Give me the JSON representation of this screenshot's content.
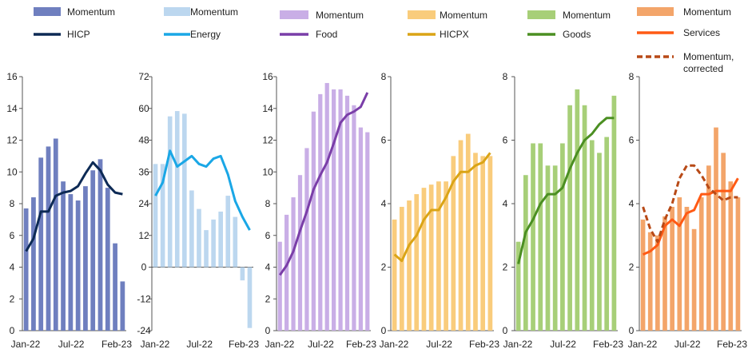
{
  "chart_data": [
    {
      "type": "bar",
      "categories": [
        "Jan-22",
        "Feb-22",
        "Mar-22",
        "Apr-22",
        "May-22",
        "Jun-22",
        "Jul-22",
        "Aug-22",
        "Sep-22",
        "Oct-22",
        "Nov-22",
        "Dec-22",
        "Jan-23",
        "Feb-23"
      ],
      "x_tick_labels": [
        "Jan-22",
        "Jul-22",
        "Feb-23"
      ],
      "ylim": [
        0,
        16
      ],
      "y_ticks": [
        "0",
        "2",
        "4",
        "6",
        "8",
        "10",
        "12",
        "14",
        "16"
      ],
      "grid": false,
      "legend_position": "top",
      "series": [
        {
          "name": "Momentum",
          "kind": "bar",
          "color": "#6f7fbf",
          "values": [
            7.7,
            8.4,
            10.9,
            11.6,
            12.1,
            9.4,
            8.6,
            8.2,
            9.1,
            10.1,
            10.8,
            9.0,
            5.5,
            3.1
          ]
        },
        {
          "name": "HICP",
          "kind": "line",
          "color": "#0d2a55",
          "values": [
            5.0,
            5.8,
            7.5,
            7.5,
            8.5,
            8.7,
            8.8,
            9.1,
            9.9,
            10.6,
            10.1,
            9.2,
            8.7,
            8.6
          ]
        }
      ]
    },
    {
      "type": "bar",
      "categories": [
        "Jan-22",
        "Feb-22",
        "Mar-22",
        "Apr-22",
        "May-22",
        "Jun-22",
        "Jul-22",
        "Aug-22",
        "Sep-22",
        "Oct-22",
        "Nov-22",
        "Dec-22",
        "Jan-23",
        "Feb-23"
      ],
      "x_tick_labels": [
        "Jan-22",
        "Jul-22",
        "Feb-23"
      ],
      "ylim": [
        -24,
        72
      ],
      "y_ticks": [
        "-24",
        "-12",
        "0",
        "12",
        "24",
        "36",
        "48",
        "60",
        "72"
      ],
      "grid": false,
      "legend_position": "top",
      "series": [
        {
          "name": "Momentum",
          "kind": "bar",
          "color": "#bcd7ef",
          "values": [
            39,
            39,
            57,
            59,
            58,
            29,
            22,
            14,
            18,
            21,
            27,
            19,
            -5,
            -23
          ]
        },
        {
          "name": "Energy",
          "kind": "line",
          "color": "#1aa7e6",
          "values": [
            27,
            32,
            44,
            38,
            40,
            42,
            39,
            38,
            41,
            42,
            35,
            25,
            19,
            14
          ]
        }
      ]
    },
    {
      "type": "bar",
      "categories": [
        "Jan-22",
        "Feb-22",
        "Mar-22",
        "Apr-22",
        "May-22",
        "Jun-22",
        "Jul-22",
        "Aug-22",
        "Sep-22",
        "Oct-22",
        "Nov-22",
        "Dec-22",
        "Jan-23",
        "Feb-23"
      ],
      "x_tick_labels": [
        "Jan-22",
        "Jul-22",
        "Feb-23"
      ],
      "ylim": [
        0,
        16
      ],
      "y_ticks": [
        "0",
        "2",
        "4",
        "6",
        "8",
        "10",
        "12",
        "14",
        "16"
      ],
      "grid": false,
      "legend_position": "top",
      "series": [
        {
          "name": "Momentum",
          "kind": "bar",
          "color": "#c9aee6",
          "values": [
            5.6,
            7.3,
            8.4,
            9.8,
            11.5,
            13.8,
            14.9,
            15.6,
            15.2,
            15.2,
            14.8,
            14.2,
            12.8,
            12.5
          ]
        },
        {
          "name": "Food",
          "kind": "line",
          "color": "#7a3ea8",
          "values": [
            3.5,
            4.1,
            5.0,
            6.3,
            7.5,
            8.9,
            9.8,
            10.6,
            11.8,
            13.1,
            13.6,
            13.8,
            14.1,
            15.0
          ]
        }
      ]
    },
    {
      "type": "bar",
      "categories": [
        "Jan-22",
        "Feb-22",
        "Mar-22",
        "Apr-22",
        "May-22",
        "Jun-22",
        "Jul-22",
        "Aug-22",
        "Sep-22",
        "Oct-22",
        "Nov-22",
        "Dec-22",
        "Jan-23",
        "Feb-23"
      ],
      "x_tick_labels": [
        "Jan-22",
        "Jul-22",
        "Feb-23"
      ],
      "ylim": [
        0,
        8
      ],
      "y_ticks": [
        "0",
        "2",
        "4",
        "6",
        "8"
      ],
      "grid": false,
      "legend_position": "top",
      "series": [
        {
          "name": "Momentum",
          "kind": "bar",
          "color": "#f9cc7c",
          "values": [
            3.5,
            3.9,
            4.1,
            4.3,
            4.5,
            4.6,
            4.7,
            4.7,
            5.5,
            6.0,
            6.2,
            5.6,
            5.5,
            5.5
          ]
        },
        {
          "name": "HICPX",
          "kind": "line",
          "color": "#daa416",
          "values": [
            2.4,
            2.2,
            2.7,
            3.0,
            3.5,
            3.8,
            3.8,
            4.2,
            4.7,
            5.0,
            5.0,
            5.2,
            5.3,
            5.6
          ]
        }
      ]
    },
    {
      "type": "bar",
      "categories": [
        "Jan-22",
        "Feb-22",
        "Mar-22",
        "Apr-22",
        "May-22",
        "Jun-22",
        "Jul-22",
        "Aug-22",
        "Sep-22",
        "Oct-22",
        "Nov-22",
        "Dec-22",
        "Jan-23",
        "Feb-23"
      ],
      "x_tick_labels": [
        "Jan-22",
        "Jul-22",
        "Feb-23"
      ],
      "ylim": [
        0,
        8
      ],
      "y_ticks": [
        "0",
        "2",
        "4",
        "6",
        "8"
      ],
      "grid": false,
      "legend_position": "top",
      "series": [
        {
          "name": "Momentum",
          "kind": "bar",
          "color": "#a7cf78",
          "values": [
            2.8,
            4.9,
            5.9,
            5.9,
            5.2,
            5.2,
            5.9,
            7.1,
            7.6,
            7.1,
            6.0,
            5.6,
            6.1,
            7.4
          ]
        },
        {
          "name": "Goods",
          "kind": "line",
          "color": "#4b8f22",
          "values": [
            2.1,
            3.1,
            3.5,
            4.0,
            4.3,
            4.3,
            4.5,
            5.1,
            5.6,
            6.0,
            6.2,
            6.5,
            6.7,
            6.7
          ]
        }
      ]
    },
    {
      "type": "bar",
      "categories": [
        "Jan-22",
        "Feb-22",
        "Mar-22",
        "Apr-22",
        "May-22",
        "Jun-22",
        "Jul-22",
        "Aug-22",
        "Sep-22",
        "Oct-22",
        "Nov-22",
        "Dec-22",
        "Jan-23",
        "Feb-23"
      ],
      "x_tick_labels": [
        "Jan-22",
        "Jul-22",
        "Feb-23"
      ],
      "ylim": [
        0,
        8
      ],
      "y_ticks": [
        "0",
        "2",
        "4",
        "6",
        "8"
      ],
      "grid": false,
      "legend_position": "top",
      "series": [
        {
          "name": "Momentum",
          "kind": "bar",
          "color": "#f3a56a",
          "values": [
            3.5,
            3.1,
            3.0,
            3.6,
            3.9,
            4.2,
            3.9,
            3.2,
            4.2,
            5.2,
            6.4,
            5.6,
            4.7,
            4.2
          ]
        },
        {
          "name": "Services",
          "kind": "line",
          "color": "#ff5a14",
          "values": [
            2.4,
            2.5,
            2.7,
            3.3,
            3.5,
            3.3,
            3.7,
            3.8,
            4.3,
            4.3,
            4.4,
            4.4,
            4.4,
            4.8
          ]
        },
        {
          "name": "Momentum, corrected",
          "kind": "dashed-line",
          "color": "#b84a17",
          "values": [
            3.9,
            3.2,
            2.8,
            3.5,
            4.0,
            4.8,
            5.2,
            5.2,
            4.9,
            4.5,
            4.3,
            4.1,
            4.2,
            4.2
          ]
        }
      ]
    }
  ]
}
